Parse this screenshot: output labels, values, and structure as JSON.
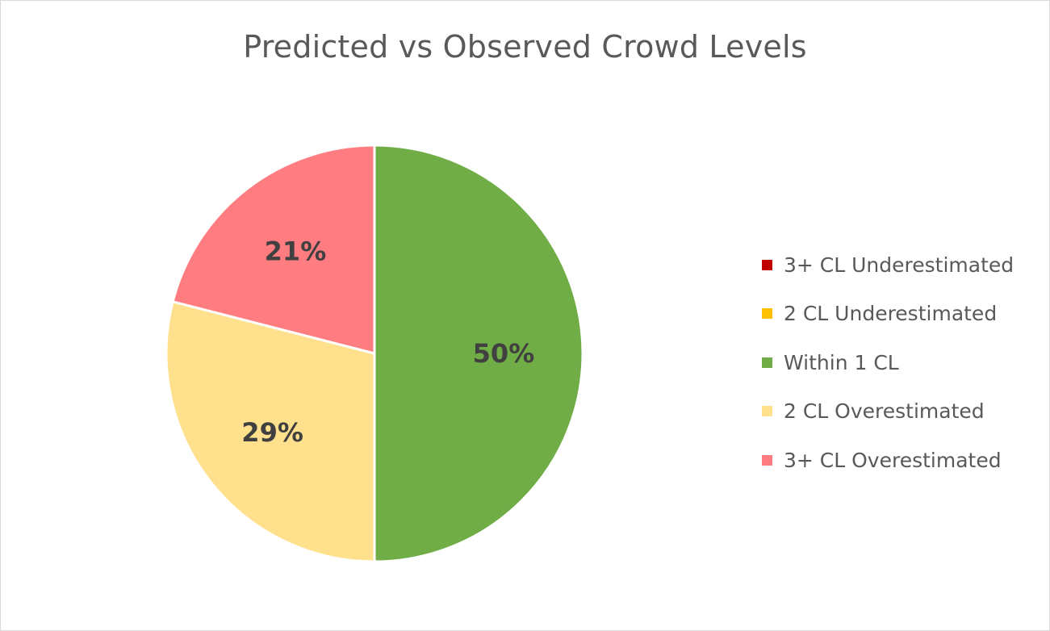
{
  "chart_data": {
    "type": "pie",
    "title": "Predicted vs Observed Crowd Levels",
    "categories": [
      "3+ CL Underestimated",
      "2 CL Underestimated",
      "Within 1 CL",
      "2 CL Overestimated",
      "3+ CL Overestimated"
    ],
    "values": [
      0,
      0,
      50,
      29,
      21
    ],
    "value_labels": [
      "",
      "",
      "50%",
      "29%",
      "21%"
    ],
    "colors": [
      "#c00000",
      "#ffc000",
      "#70ad47",
      "#ffe08c",
      "#ff7c80"
    ],
    "legend_position": "right"
  }
}
